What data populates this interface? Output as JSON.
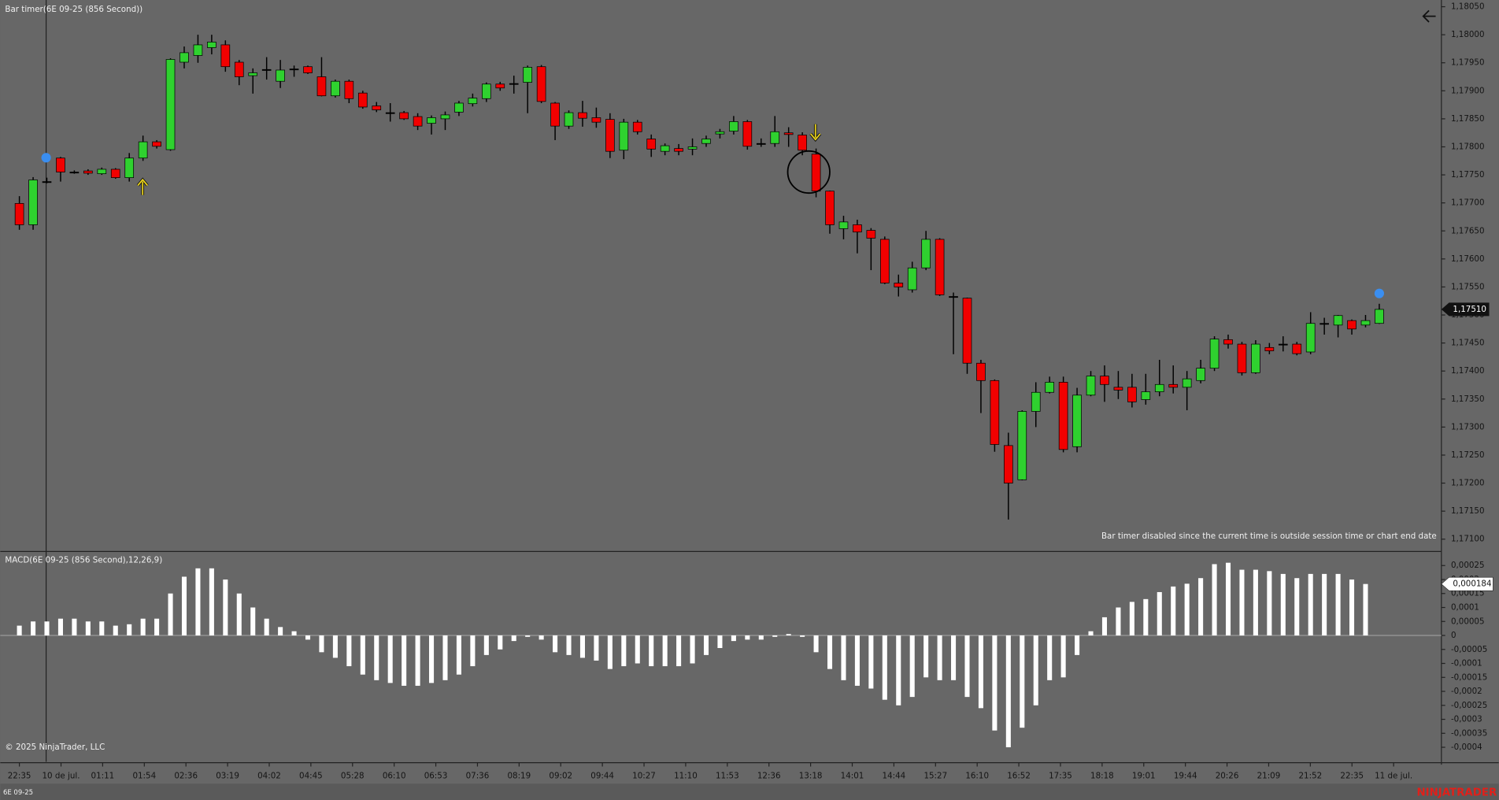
{
  "chart_data": {
    "type": "candlestick",
    "title": "Bar timer(6E 09-25 (856 Second))",
    "notice": "Bar timer disabled since the current time is outside session time or chart end date",
    "copyright": "© 2025 NinjaTrader, LLC",
    "instrument": "6E 09-25",
    "brand": "NINJATRADER",
    "up_color": "#2fd12f",
    "down_color": "#f20000",
    "x_labels": [
      "22:35",
      "10 de jul.",
      "01:11",
      "01:54",
      "02:36",
      "03:19",
      "04:02",
      "04:45",
      "05:28",
      "06:10",
      "06:53",
      "07:36",
      "08:19",
      "09:02",
      "09:44",
      "10:27",
      "11:10",
      "11:53",
      "12:36",
      "13:18",
      "14:01",
      "14:44",
      "15:27",
      "16:10",
      "16:52",
      "17:35",
      "18:18",
      "19:01",
      "19:44",
      "20:26",
      "21:09",
      "21:52",
      "22:35",
      "11 de jul."
    ],
    "open": [
      1.17699,
      1.17661,
      1.17738,
      1.1778,
      1.17755,
      1.17757,
      1.17752,
      1.1776,
      1.17745,
      1.1778,
      1.17809,
      1.17795,
      1.17951,
      1.17963,
      1.17977,
      1.17982,
      1.17951,
      1.17927,
      1.17938,
      1.17917,
      1.17939,
      1.17943,
      1.17925,
      1.17891,
      1.17917,
      1.17896,
      1.17873,
      1.17861,
      1.17861,
      1.17854,
      1.17842,
      1.1785,
      1.17862,
      1.17877,
      1.17886,
      1.17912,
      1.17913,
      1.17915,
      1.17943,
      1.17878,
      1.17837,
      1.17861,
      1.17852,
      1.17849,
      1.17794,
      1.17844,
      1.17814,
      1.17792,
      1.17797,
      1.17796,
      1.17806,
      1.17823,
      1.17828,
      1.17845,
      1.17806,
      1.17806,
      1.17825,
      1.17821,
      1.17787,
      1.17721,
      1.17654,
      1.17661,
      1.17651,
      1.17635,
      1.17557,
      1.17545,
      1.17584,
      1.17635,
      1.17533,
      1.1753,
      1.17414,
      1.17383,
      1.17267,
      1.17206,
      1.17328,
      1.17362,
      1.1738,
      1.17265,
      1.17357,
      1.17391,
      1.17371,
      1.17371,
      1.17349,
      1.17363,
      1.17376,
      1.17371,
      1.17383,
      1.17405,
      1.17456,
      1.17448,
      1.17397,
      1.17442,
      1.17448,
      1.17448,
      1.17434,
      1.17485,
      1.17482,
      1.1749,
      1.17482,
      1.17485
    ],
    "high": [
      1.17712,
      1.17746,
      1.17745,
      1.17782,
      1.17758,
      1.1776,
      1.17763,
      1.17762,
      1.17789,
      1.1782,
      1.17812,
      1.17958,
      1.17979,
      1.18,
      1.18,
      1.1799,
      1.17955,
      1.1794,
      1.1796,
      1.17955,
      1.17945,
      1.17945,
      1.1796,
      1.1792,
      1.1792,
      1.179,
      1.1788,
      1.17878,
      1.17864,
      1.1786,
      1.17856,
      1.17863,
      1.17882,
      1.17895,
      1.17915,
      1.17916,
      1.17927,
      1.17945,
      1.17946,
      1.1788,
      1.17865,
      1.17882,
      1.1787,
      1.1786,
      1.1785,
      1.17848,
      1.17822,
      1.17806,
      1.17805,
      1.17815,
      1.1782,
      1.17832,
      1.17855,
      1.17848,
      1.17815,
      1.17855,
      1.17835,
      1.17826,
      1.17797,
      1.17722,
      1.17677,
      1.1767,
      1.17655,
      1.1764,
      1.17572,
      1.17595,
      1.1765,
      1.17637,
      1.1754,
      1.17531,
      1.1742,
      1.17385,
      1.1729,
      1.1733,
      1.1738,
      1.1739,
      1.1739,
      1.1737,
      1.174,
      1.1741,
      1.174,
      1.17395,
      1.17395,
      1.1742,
      1.1741,
      1.174,
      1.1742,
      1.17462,
      1.17465,
      1.17452,
      1.17455,
      1.1745,
      1.17462,
      1.17452,
      1.17505,
      1.17495,
      1.175,
      1.17492,
      1.175,
      1.1752
    ],
    "low": [
      1.17652,
      1.17652,
      1.17735,
      1.17738,
      1.17752,
      1.1775,
      1.1775,
      1.17743,
      1.17738,
      1.17775,
      1.17797,
      1.17793,
      1.1794,
      1.1795,
      1.17965,
      1.17934,
      1.1791,
      1.17895,
      1.1792,
      1.17905,
      1.17925,
      1.1793,
      1.1789,
      1.17888,
      1.17878,
      1.17868,
      1.17862,
      1.17845,
      1.17848,
      1.1783,
      1.17822,
      1.1783,
      1.17855,
      1.17872,
      1.1788,
      1.179,
      1.17895,
      1.1786,
      1.17878,
      1.17812,
      1.17832,
      1.17836,
      1.17834,
      1.1778,
      1.17778,
      1.17822,
      1.17782,
      1.17785,
      1.17785,
      1.17785,
      1.178,
      1.17815,
      1.17822,
      1.17795,
      1.178,
      1.178,
      1.178,
      1.17785,
      1.1771,
      1.17645,
      1.17635,
      1.1761,
      1.1758,
      1.17555,
      1.17533,
      1.1754,
      1.1758,
      1.17534,
      1.1743,
      1.17395,
      1.17325,
      1.17256,
      1.17135,
      1.17205,
      1.173,
      1.1736,
      1.17255,
      1.17255,
      1.17355,
      1.17345,
      1.1735,
      1.17335,
      1.1734,
      1.17355,
      1.1736,
      1.1733,
      1.17378,
      1.174,
      1.1744,
      1.17392,
      1.17395,
      1.1743,
      1.17435,
      1.17428,
      1.1743,
      1.17465,
      1.1746,
      1.17465,
      1.17478,
      1.17484
    ],
    "close": [
      1.17661,
      1.17741,
      1.17738,
      1.17755,
      1.17755,
      1.17753,
      1.1776,
      1.17745,
      1.1778,
      1.17809,
      1.17801,
      1.17956,
      1.17968,
      1.17982,
      1.17987,
      1.17943,
      1.17925,
      1.17932,
      1.17938,
      1.17937,
      1.17939,
      1.17932,
      1.17891,
      1.17917,
      1.17886,
      1.17871,
      1.17866,
      1.17861,
      1.1785,
      1.17837,
      1.17852,
      1.17857,
      1.17878,
      1.17887,
      1.17912,
      1.17905,
      1.17913,
      1.17942,
      1.17881,
      1.17837,
      1.17861,
      1.17851,
      1.17844,
      1.17792,
      1.17844,
      1.17827,
      1.17796,
      1.17802,
      1.17792,
      1.178,
      1.17814,
      1.17827,
      1.17845,
      1.17801,
      1.17806,
      1.17827,
      1.17822,
      1.17794,
      1.17721,
      1.17661,
      1.17666,
      1.17648,
      1.17637,
      1.17557,
      1.1755,
      1.17584,
      1.17635,
      1.17536,
      1.17533,
      1.17414,
      1.17383,
      1.17269,
      1.172,
      1.17328,
      1.17362,
      1.1738,
      1.1726,
      1.17357,
      1.17391,
      1.17376,
      1.17366,
      1.17345,
      1.17363,
      1.17376,
      1.17371,
      1.17386,
      1.17405,
      1.17457,
      1.17448,
      1.17397,
      1.17448,
      1.17436,
      1.17448,
      1.17431,
      1.17485,
      1.17485,
      1.17499,
      1.17475,
      1.1749,
      1.1751
    ],
    "current_label": "1,17510",
    "ylim": [
      1.17078,
      1.18062
    ],
    "yticks": [
      {
        "value": 1.1805,
        "label": "1,18050"
      },
      {
        "value": 1.18,
        "label": "1,18000"
      },
      {
        "value": 1.1795,
        "label": "1,17950"
      },
      {
        "value": 1.179,
        "label": "1,17900"
      },
      {
        "value": 1.1785,
        "label": "1,17850"
      },
      {
        "value": 1.178,
        "label": "1,17800"
      },
      {
        "value": 1.1775,
        "label": "1,17750"
      },
      {
        "value": 1.177,
        "label": "1,17700"
      },
      {
        "value": 1.1765,
        "label": "1,17650"
      },
      {
        "value": 1.176,
        "label": "1,17600"
      },
      {
        "value": 1.1755,
        "label": "1,17550"
      },
      {
        "value": 1.175,
        "label": "1,17500"
      },
      {
        "value": 1.1745,
        "label": "1,17450"
      },
      {
        "value": 1.174,
        "label": "1,17400"
      },
      {
        "value": 1.1735,
        "label": "1,17350"
      },
      {
        "value": 1.173,
        "label": "1,17300"
      },
      {
        "value": 1.1725,
        "label": "1,17250"
      },
      {
        "value": 1.172,
        "label": "1,17200"
      },
      {
        "value": 1.1715,
        "label": "1,17150"
      },
      {
        "value": 1.171,
        "label": "1,17100"
      }
    ],
    "macd": {
      "title": "MACD(6E 09-25 (856 Second),12,26,9)",
      "color": "#ffffff",
      "values": [
        3.5e-05,
        5e-05,
        5e-05,
        6e-05,
        6e-05,
        5e-05,
        5e-05,
        3.5e-05,
        4e-05,
        6e-05,
        6e-05,
        0.00015,
        0.00021,
        0.00024,
        0.00024,
        0.0002,
        0.00015,
        0.0001,
        6e-05,
        3e-05,
        1.5e-05,
        -1.5e-05,
        -6e-05,
        -8e-05,
        -0.00011,
        -0.00014,
        -0.00016,
        -0.00017,
        -0.00018,
        -0.00018,
        -0.00017,
        -0.00016,
        -0.00014,
        -0.00011,
        -7e-05,
        -5e-05,
        -2e-05,
        -5e-06,
        -1.5e-05,
        -6e-05,
        -7e-05,
        -8e-05,
        -9e-05,
        -0.00012,
        -0.00011,
        -0.0001,
        -0.00011,
        -0.00011,
        -0.00011,
        -0.0001,
        -7e-05,
        -4.5e-05,
        -2e-05,
        -1.5e-05,
        -1.5e-05,
        -5e-06,
        5e-06,
        -5e-06,
        -6e-05,
        -0.00012,
        -0.00016,
        -0.00018,
        -0.00019,
        -0.00023,
        -0.00025,
        -0.00022,
        -0.00015,
        -0.00016,
        -0.00016,
        -0.00022,
        -0.00026,
        -0.00034,
        -0.0004,
        -0.00033,
        -0.00025,
        -0.00016,
        -0.00015,
        -7e-05,
        1.5e-05,
        6.5e-05,
        0.0001,
        0.00012,
        0.00013,
        0.000155,
        0.000175,
        0.000185,
        0.000205,
        0.000255,
        0.00026,
        0.000235,
        0.000235,
        0.00023,
        0.00022,
        0.000205,
        0.00022,
        0.00022,
        0.00022,
        0.0002,
        0.000184,
        null
      ],
      "current_label": "0,000184",
      "ylim": [
        -0.000445,
        0.00029
      ],
      "yticks": [
        {
          "value": 0.00025,
          "label": "0,00025"
        },
        {
          "value": 0.0002,
          "label": "0,0002"
        },
        {
          "value": 0.00015,
          "label": "0,00015"
        },
        {
          "value": 0.0001,
          "label": "0,0001"
        },
        {
          "value": 5e-05,
          "label": "0,00005"
        },
        0,
        {
          "value": -5e-05,
          "label": "-0,00005"
        },
        {
          "value": -0.0001,
          "label": "-0,0001"
        },
        {
          "value": -0.00015,
          "label": "-0,00015"
        },
        {
          "value": -0.0002,
          "label": "-0,0002"
        },
        {
          "value": -0.00025,
          "label": "-0,00025"
        },
        {
          "value": -0.0003,
          "label": "-0,0003"
        },
        {
          "value": -0.00035,
          "label": "-0,00035"
        },
        {
          "value": -0.0004,
          "label": "-0,0004"
        }
      ]
    }
  }
}
